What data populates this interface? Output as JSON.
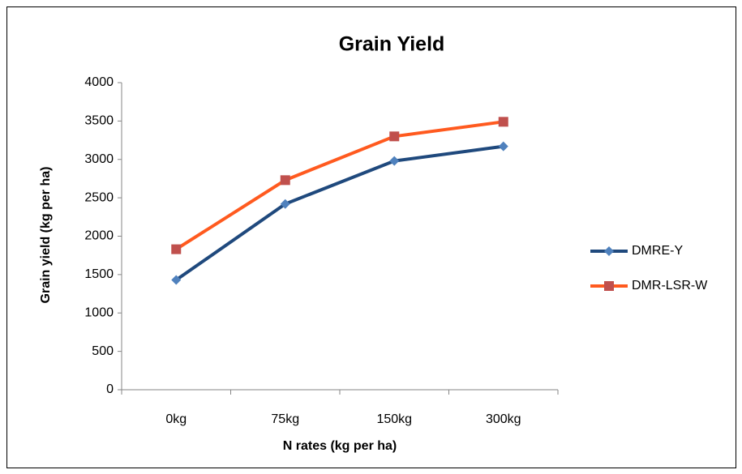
{
  "chart_data": {
    "type": "line",
    "title": "Grain Yield",
    "x_label": "N rates (kg per ha)",
    "y_label": "Grain yield (kg per ha)",
    "categories": [
      "0kg",
      "75kg",
      "150kg",
      "300kg"
    ],
    "series": [
      {
        "name": "DMRE-Y",
        "color": "#1f497d",
        "marker_color": "#4f81bd",
        "marker": "diamond",
        "values": [
          1430,
          2420,
          2980,
          3170
        ]
      },
      {
        "name": "DMR-LSR-W",
        "color": "#ff5a1f",
        "marker_color": "#c0504d",
        "marker": "square",
        "values": [
          1830,
          2730,
          3300,
          3490
        ]
      }
    ],
    "ylim": [
      0,
      4000
    ],
    "yticks": [
      0,
      500,
      1000,
      1500,
      2000,
      2500,
      3000,
      3500,
      4000
    ],
    "grid": false,
    "legend": "right"
  }
}
